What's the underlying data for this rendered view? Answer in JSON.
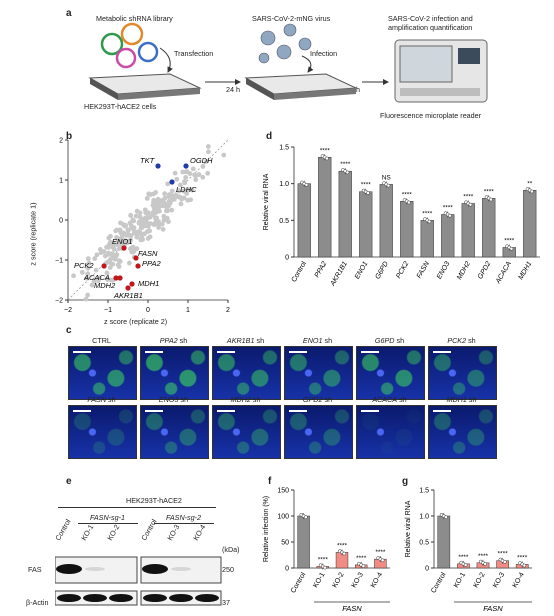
{
  "panel_a": {
    "label": "a",
    "library": "Metabolic shRNA library",
    "transfection": "Transfection",
    "cells": "HEK293T-hACE2 cells",
    "virus": "SARS-CoV-2-mNG virus",
    "infection": "Infection",
    "time1": "24 h",
    "time2": "48 h",
    "quant": [
      "SARS-CoV-2 infection and",
      "amplification quantification"
    ],
    "reader": "Fluorescence microplate reader"
  },
  "panel_b": {
    "label": "b",
    "xlabel": "z score (replicate 2)",
    "ylabel": "z score (replicate 1)",
    "xticks": [
      "−2",
      "−1",
      "0",
      "1",
      "2"
    ],
    "yticks": [
      "2",
      "1",
      "0",
      "−1",
      "−2"
    ],
    "genes_blue": [
      "TKT",
      "OGDH",
      "LDHC"
    ],
    "genes_red": [
      "ENO1",
      "FASN",
      "PPA2",
      "PCK2",
      "ACACA",
      "MDH1",
      "MDH2",
      "AKR1B1"
    ],
    "colors": {
      "blue": "#1f3ca6",
      "red": "#c0171d",
      "grey": "#c8c8c8"
    }
  },
  "panel_d": {
    "label": "d",
    "ylabel": "Relative viral RNA",
    "yticks": [
      "1.5",
      "1.0",
      "0.5",
      "0"
    ]
  },
  "panel_c": {
    "label": "c",
    "row1": [
      "CTRL",
      "PPA2 sh",
      "AKR1B1 sh",
      "ENO1 sh",
      "G6PD sh",
      "PCK2 sh"
    ],
    "row2": [
      "FASN sh",
      "ENO3 sh",
      "MDH2 sh",
      "GPD2 sh",
      "ACACA sh",
      "MDH1 sh"
    ]
  },
  "panel_e": {
    "label": "e",
    "cellline": "HEK293T-hACE2",
    "sg1": "FASN-sg-1",
    "sg2": "FASN-sg-2",
    "lanes": [
      "Control",
      "KO-1",
      "KO-2",
      "Control",
      "KO-3",
      "KO-4"
    ],
    "kda": "(kDa)",
    "fas": "FAS",
    "actin": "β-Actin",
    "m250": "250",
    "m37": "37"
  },
  "panel_f": {
    "label": "f",
    "ylabel": "Relative infection (%)",
    "yticks": [
      "150",
      "100",
      "50",
      "0"
    ],
    "group": "FASN"
  },
  "panel_g": {
    "label": "g",
    "ylabel": "Relative viral RNA",
    "yticks": [
      "1.5",
      "1.0",
      "0.5",
      "0"
    ],
    "group": "FASN"
  },
  "chart_data": [
    {
      "type": "bar",
      "panel": "d",
      "ylabel": "Relative viral RNA",
      "ylim": [
        0,
        1.5
      ],
      "categories": [
        "Control",
        "PPA2",
        "AKR1B1",
        "ENO1",
        "G6PD",
        "PCK2",
        "FASN",
        "ENO3",
        "MDH2",
        "GPD2",
        "ACACA",
        "MDH1"
      ],
      "values": [
        1.0,
        1.36,
        1.17,
        0.89,
        0.99,
        0.76,
        0.5,
        0.58,
        0.73,
        0.8,
        0.13,
        0.91
      ],
      "significance": [
        "",
        "****",
        "****",
        "****",
        "NS",
        "****",
        "****",
        "****",
        "****",
        "****",
        "****",
        "**"
      ],
      "bar_color": "#8c8c8c"
    },
    {
      "type": "bar",
      "panel": "f",
      "ylabel": "Relative infection (%)",
      "ylim": [
        0,
        150
      ],
      "categories": [
        "Control",
        "KO-1",
        "KO-2",
        "KO-3",
        "KO-4"
      ],
      "values": [
        100,
        3,
        30,
        6,
        17
      ],
      "significance": [
        "",
        "****",
        "****",
        "****",
        "****"
      ],
      "colors": [
        "#8c8c8c",
        "#f08c84",
        "#f08c84",
        "#f08c84",
        "#f08c84"
      ]
    },
    {
      "type": "bar",
      "panel": "g",
      "ylabel": "Relative viral RNA",
      "ylim": [
        0,
        1.5
      ],
      "categories": [
        "Control",
        "KO-1",
        "KO-2",
        "KO-3",
        "KO-4"
      ],
      "values": [
        1.0,
        0.08,
        0.1,
        0.14,
        0.07
      ],
      "significance": [
        "",
        "****",
        "****",
        "****",
        "****"
      ],
      "colors": [
        "#8c8c8c",
        "#f08c84",
        "#f08c84",
        "#f08c84",
        "#f08c84"
      ]
    }
  ]
}
